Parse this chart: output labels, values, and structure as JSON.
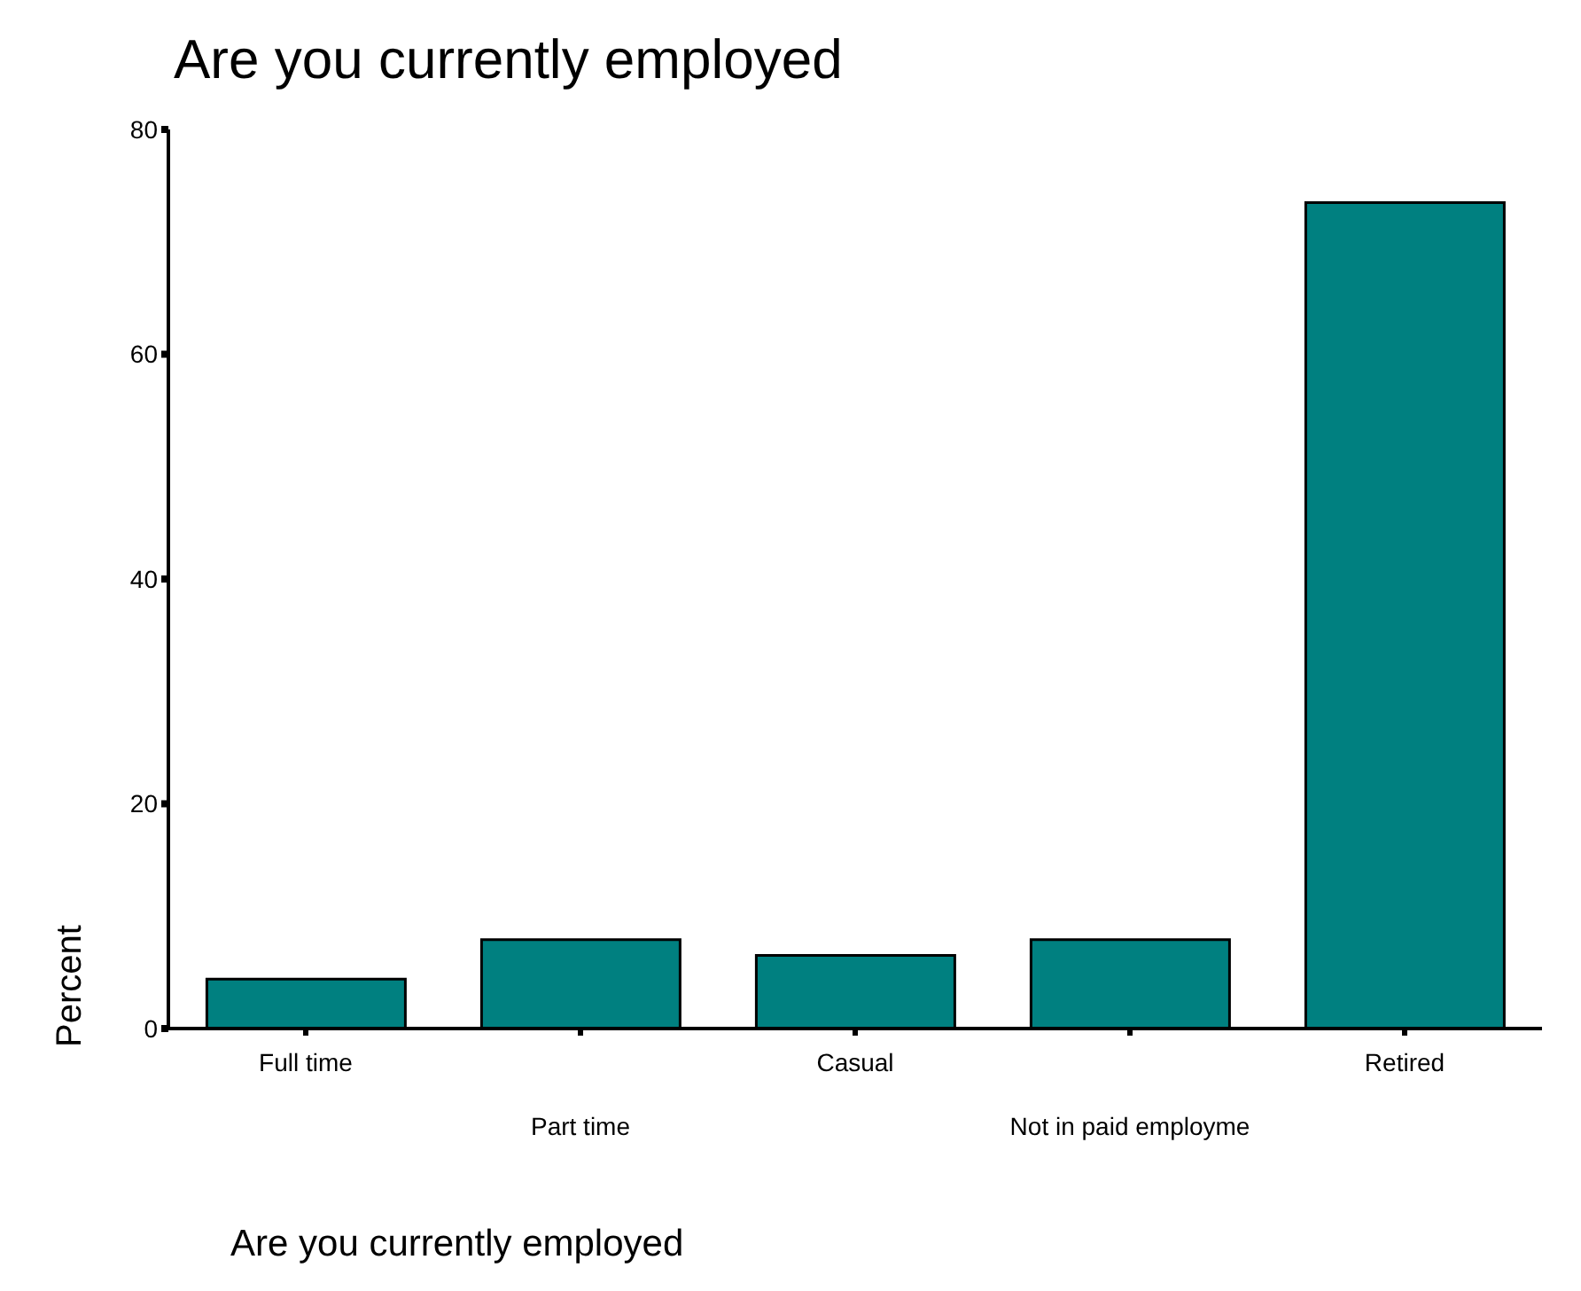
{
  "chart_data": {
    "type": "bar",
    "title": "Are you currently employed",
    "xlabel": "Are you currently employed",
    "ylabel": "Percent",
    "categories": [
      "Full time",
      "Part time",
      "Casual",
      "Not in paid employme",
      "Retired"
    ],
    "values": [
      4.4,
      7.9,
      6.5,
      7.9,
      73.5
    ],
    "color": "#008080",
    "ylim": [
      0,
      80
    ],
    "yticks": [
      0,
      20,
      40,
      60,
      80
    ],
    "grid": false,
    "legend": false
  }
}
